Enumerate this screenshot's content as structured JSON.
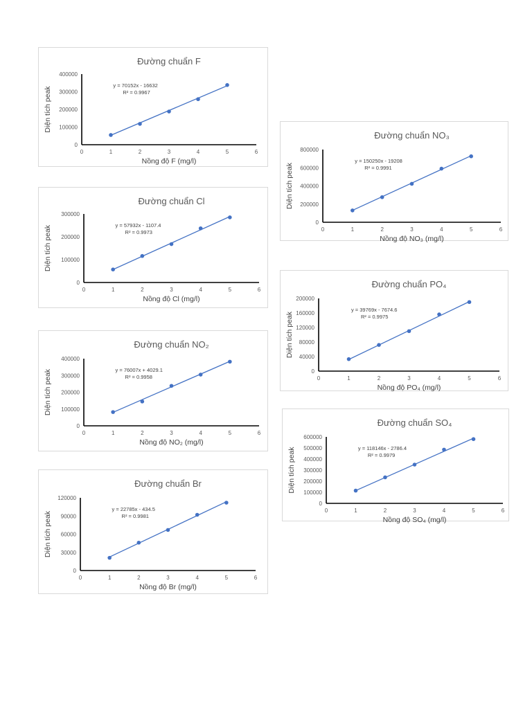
{
  "colors": {
    "series": "#4472c4",
    "axis": "#000000",
    "text": "#595959",
    "border": "#d9d9d9"
  },
  "chart_data": [
    {
      "id": "f",
      "type": "scatter",
      "title": "Đường chuẩn F",
      "ylabel": "Diện tích peak",
      "xlabel": "Nồng độ F (mg/l)",
      "x": [
        1,
        2,
        3,
        4,
        5
      ],
      "y": [
        55000,
        118000,
        188000,
        258000,
        338000
      ],
      "xlim": [
        0,
        6
      ],
      "ylim": [
        0,
        400000
      ],
      "yticks": [
        0,
        100000,
        200000,
        300000,
        400000
      ],
      "equation": "y = 70152x - 16632",
      "r2": "R² = 0.9967",
      "trendline": {
        "slope": 70152,
        "intercept": -16632
      }
    },
    {
      "id": "cl",
      "type": "scatter",
      "title": "Đường chuẩn Cl",
      "ylabel": "Diện tích peak",
      "xlabel": "Nồng độ Cl (mg/l)",
      "x": [
        1,
        2,
        3,
        4,
        5
      ],
      "y": [
        57000,
        116000,
        168000,
        237000,
        285000
      ],
      "xlim": [
        0,
        6
      ],
      "ylim": [
        0,
        300000
      ],
      "yticks": [
        0,
        100000,
        200000,
        300000
      ],
      "equation": "y = 57932x - 1107.4",
      "r2": "R² = 0.9973",
      "trendline": {
        "slope": 57932,
        "intercept": -1107.4
      }
    },
    {
      "id": "no2",
      "type": "scatter",
      "title": "Đường chuẩn NO₂",
      "ylabel": "Diện tích peak",
      "xlabel": "Nồng độ NO₂ (mg/l)",
      "x": [
        1,
        2,
        3,
        4,
        5
      ],
      "y": [
        82000,
        145000,
        238000,
        305000,
        382000
      ],
      "xlim": [
        0,
        6
      ],
      "ylim": [
        0,
        400000
      ],
      "yticks": [
        0,
        100000,
        200000,
        300000,
        400000
      ],
      "equation": "y = 76007x + 4029.1",
      "r2": "R² = 0.9958",
      "trendline": {
        "slope": 76007,
        "intercept": 4029.1
      }
    },
    {
      "id": "br",
      "type": "scatter",
      "title": "Đường chuẩn Br",
      "ylabel": "Diện tích peak",
      "xlabel": "Nồng độ Br (mg/l)",
      "x": [
        1,
        2,
        3,
        4,
        5
      ],
      "y": [
        21000,
        46000,
        67000,
        92000,
        112000
      ],
      "xlim": [
        0,
        6
      ],
      "ylim": [
        0,
        120000
      ],
      "yticks": [
        0,
        30000,
        60000,
        90000,
        120000
      ],
      "equation": "y = 22785x - 434.5",
      "r2": "R² = 0.9981",
      "trendline": {
        "slope": 22785,
        "intercept": -434.5
      }
    },
    {
      "id": "no3",
      "type": "scatter",
      "title": "Đường chuẩn NO₃",
      "ylabel": "Diện tích peak",
      "xlabel": "Nồng độ NO₃ (mg/l)",
      "x": [
        1,
        2,
        3,
        4,
        5
      ],
      "y": [
        130000,
        276000,
        423000,
        590000,
        726000
      ],
      "xlim": [
        0,
        6
      ],
      "ylim": [
        0,
        800000
      ],
      "yticks": [
        0,
        200000,
        400000,
        600000,
        800000
      ],
      "equation": "y = 150250x - 19208",
      "r2": "R² = 0.9991",
      "trendline": {
        "slope": 150250,
        "intercept": -19208
      }
    },
    {
      "id": "po4",
      "type": "scatter",
      "title": "Đường chuẩn PO₄",
      "ylabel": "Diện tích peak",
      "xlabel": "Nồng độ PO₄ (mg/l)",
      "x": [
        1,
        2,
        3,
        4,
        5
      ],
      "y": [
        33000,
        72000,
        110000,
        156000,
        190000
      ],
      "xlim": [
        0,
        6
      ],
      "ylim": [
        0,
        200000
      ],
      "yticks": [
        0,
        40000,
        80000,
        120000,
        160000,
        200000
      ],
      "equation": "y = 39769x - 7674.6",
      "r2": "R² = 0.9975",
      "trendline": {
        "slope": 39769,
        "intercept": -7674.6
      }
    },
    {
      "id": "so4",
      "type": "scatter",
      "title": "Đường chuẩn SO₄",
      "ylabel": "Diện tích peak",
      "xlabel": "Nồng độ SO₄ (mg/l)",
      "x": [
        1,
        2,
        3,
        4,
        5
      ],
      "y": [
        115000,
        235000,
        350000,
        485000,
        580000
      ],
      "xlim": [
        0,
        6
      ],
      "ylim": [
        0,
        600000
      ],
      "yticks": [
        0,
        100000,
        200000,
        300000,
        400000,
        500000,
        600000
      ],
      "equation": "y = 118146x - 2786.4",
      "r2": "R² = 0.9979",
      "trendline": {
        "slope": 118146,
        "intercept": -2786.4
      }
    }
  ]
}
